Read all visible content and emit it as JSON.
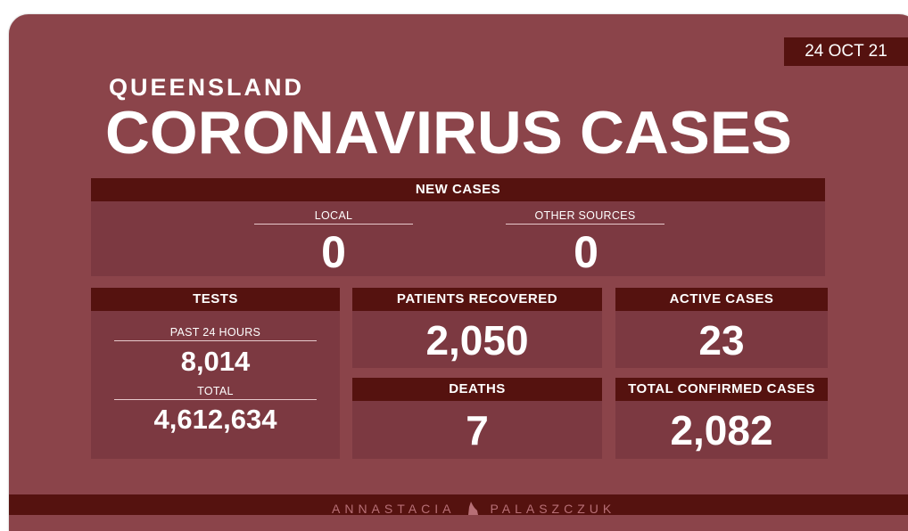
{
  "date": "24 OCT 21",
  "header": {
    "region": "QUEENSLAND",
    "title": "CORONAVIRUS CASES"
  },
  "new_cases": {
    "title": "NEW CASES",
    "local": {
      "label": "LOCAL",
      "value": "0"
    },
    "other": {
      "label": "OTHER SOURCES",
      "value": "0"
    }
  },
  "tests": {
    "title": "TESTS",
    "past24": {
      "label": "PAST 24 HOURS",
      "value": "8,014"
    },
    "total": {
      "label": "TOTAL",
      "value": "4,612,634"
    }
  },
  "recovered": {
    "title": "PATIENTS RECOVERED",
    "value": "2,050"
  },
  "deaths": {
    "title": "DEATHS",
    "value": "7"
  },
  "active": {
    "title": "ACTIVE CASES",
    "value": "23"
  },
  "confirmed": {
    "title": "TOTAL CONFIRMED CASES",
    "value": "2,082"
  },
  "footer": {
    "first": "ANNASTACIA",
    "last": "PALASZCZUK"
  },
  "colors": {
    "background": "#8b444a",
    "header_bar": "#55120f",
    "panel": "#7c3941",
    "footer_text": "#b76f76"
  }
}
